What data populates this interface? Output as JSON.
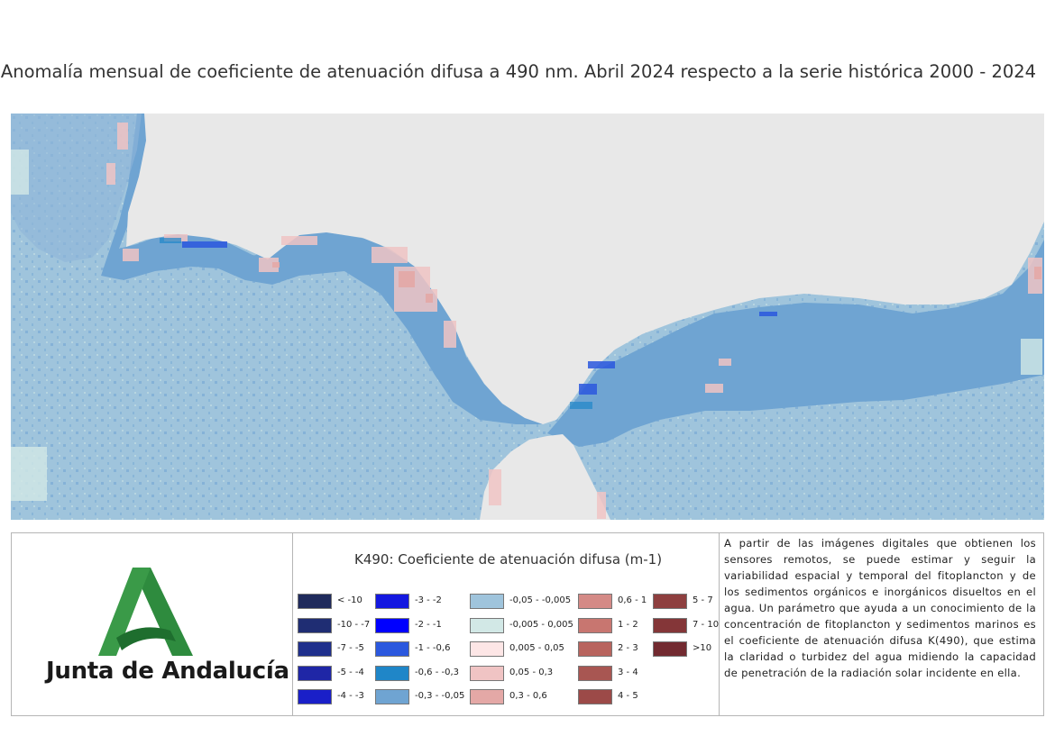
{
  "title": "Anomalía mensual de coeficiente de atenuación difusa a 490 nm. Abril 2024 respecto a la serie histórica 2000 - 2024",
  "map": {
    "land_color": "#e8e8e8",
    "sea_base_color": "#9fc4dc",
    "coastal_band_color": "#6fa4d2"
  },
  "logo": {
    "text": "Junta de Andalucía",
    "primary_color": "#2e8b3e",
    "secondary_color": "#1e6e2e"
  },
  "legend": {
    "title": "K490: Coeficiente de atenuación difusa (m-1)",
    "items": [
      {
        "label": "< -10",
        "color": "#1f2a5c"
      },
      {
        "label": "-10 - -7",
        "color": "#1f2d73"
      },
      {
        "label": "-7 - -5",
        "color": "#1f2f8c"
      },
      {
        "label": "-5 - -4",
        "color": "#1f26a6"
      },
      {
        "label": "-4 - -3",
        "color": "#1a1fc8"
      },
      {
        "label": "-3 - -2",
        "color": "#1418e0"
      },
      {
        "label": "-2 - -1",
        "color": "#0000ff"
      },
      {
        "label": "-1 - -0,6",
        "color": "#2b58de"
      },
      {
        "label": "-0,6 - -0,3",
        "color": "#1f86c8"
      },
      {
        "label": "-0,3 - -0,05",
        "color": "#6fa4d2"
      },
      {
        "label": "-0,05 - -0,005",
        "color": "#9fc4dc"
      },
      {
        "label": "-0,005 - 0,005",
        "color": "#d2e8e6"
      },
      {
        "label": "0,005 - 0,05",
        "color": "#fde6e6"
      },
      {
        "label": "0,05 - 0,3",
        "color": "#f0c4c4"
      },
      {
        "label": "0,3 - 0,6",
        "color": "#e4a8a6"
      },
      {
        "label": "0,6 - 1",
        "color": "#d48a86"
      },
      {
        "label": "1 - 2",
        "color": "#c87670"
      },
      {
        "label": "2 - 3",
        "color": "#b8645e"
      },
      {
        "label": "3 - 4",
        "color": "#a85652"
      },
      {
        "label": "4 - 5",
        "color": "#9c4a48"
      },
      {
        "label": "5 - 7",
        "color": "#8e3f3f"
      },
      {
        "label": "7 - 10",
        "color": "#843638"
      },
      {
        "label": ">10",
        "color": "#722a30"
      }
    ]
  },
  "description": "A partir de las imágenes digitales que obtienen los sensores remotos, se puede estimar y seguir la variabilidad espacial y temporal del fitoplancton y de los sedimentos orgánicos e inorgánicos disueltos en el agua. Un parámetro que ayuda a un conocimiento de la concentración de fitoplancton y sedimentos marinos es el coeficiente de atenuación difusa K(490), que estima la claridad o turbidez del agua midiendo la capacidad de penetración de la radiación solar incidente en ella."
}
